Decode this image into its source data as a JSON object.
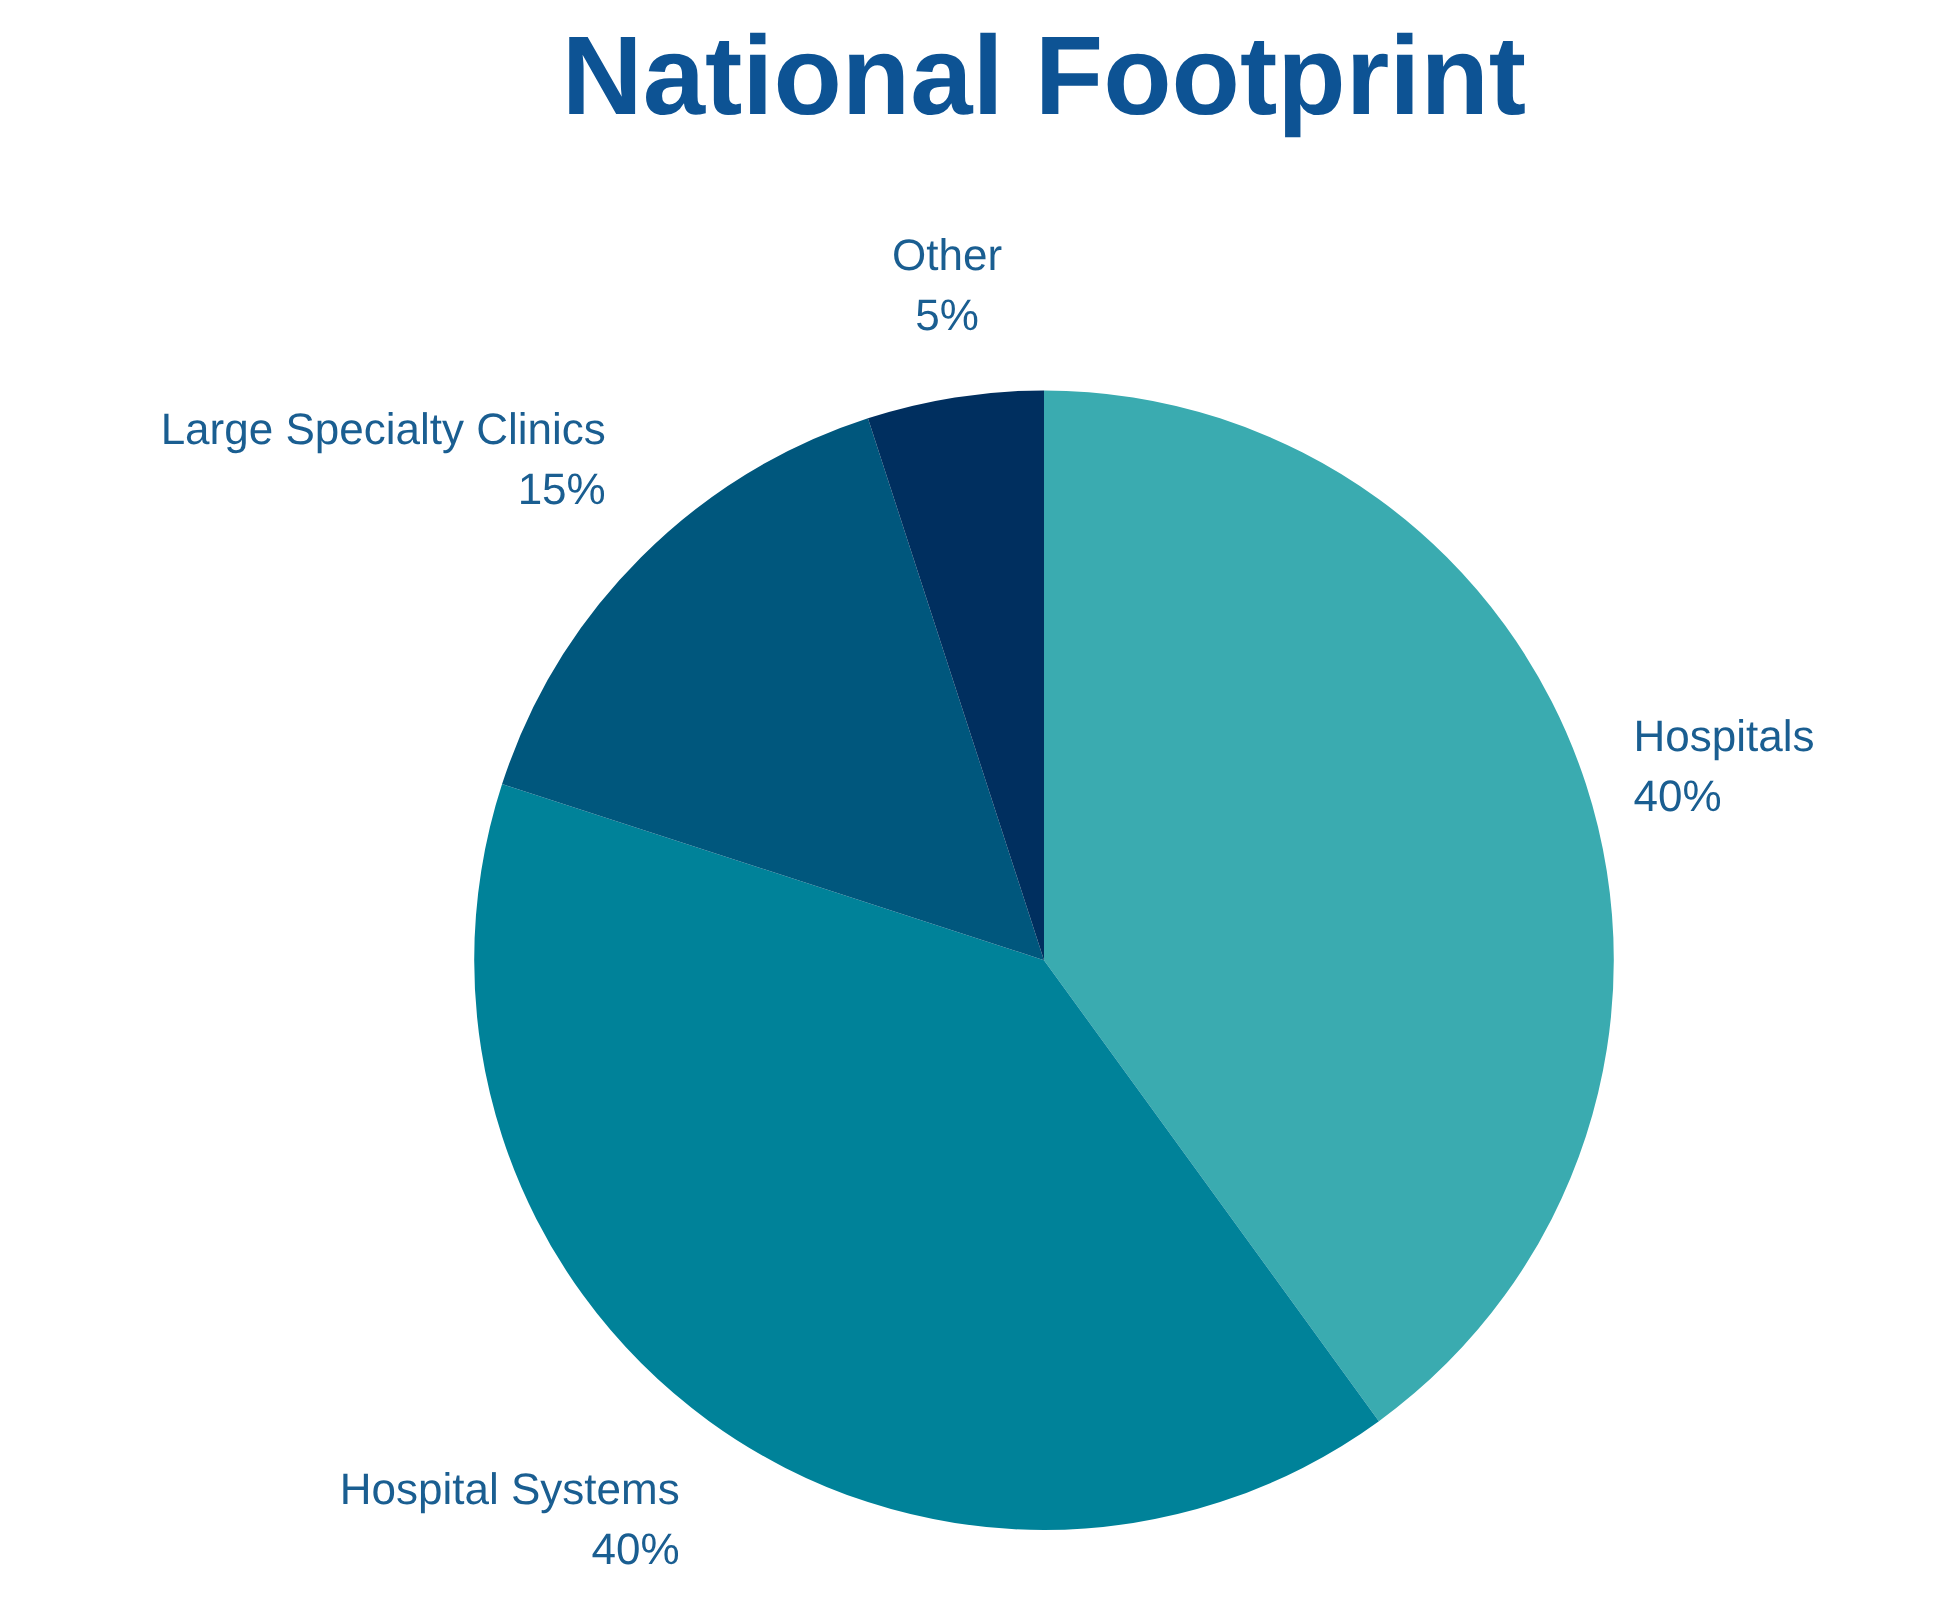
{
  "chart_data": {
    "type": "pie",
    "title": "National Footprint",
    "categories": [
      "Hospitals",
      "Hospital Systems",
      "Large Specialty Clinics",
      "Other"
    ],
    "values": [
      40,
      40,
      15,
      5
    ],
    "value_labels": [
      "40%",
      "40%",
      "15%",
      "5%"
    ],
    "colors": [
      "#3aabb0",
      "#008299",
      "#00577d",
      "#002f5f"
    ],
    "legend": false
  }
}
